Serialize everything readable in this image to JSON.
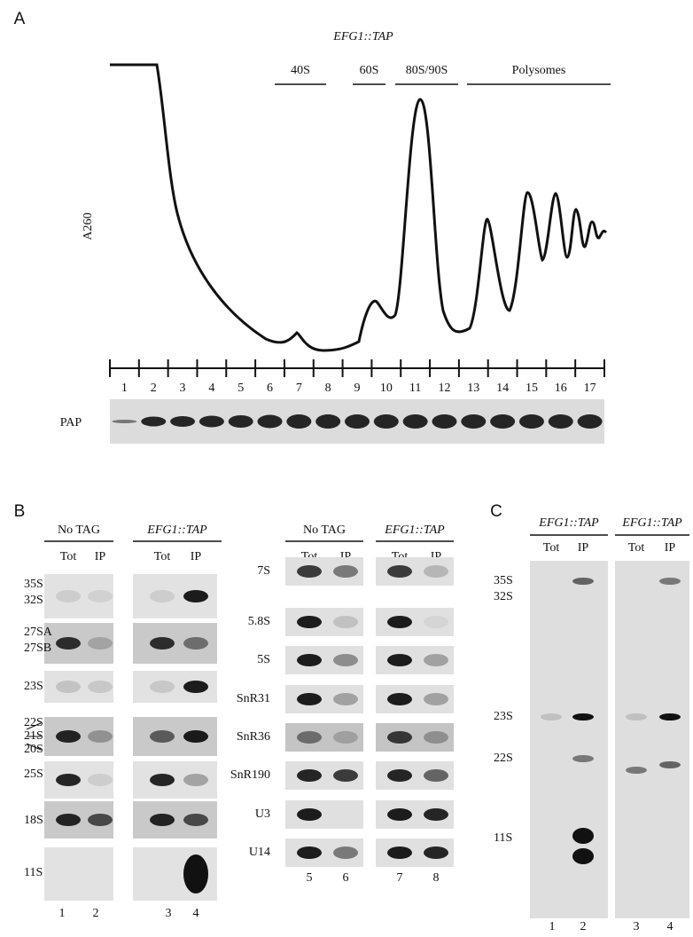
{
  "panel_a": {
    "label": "A",
    "title": "EFG1::TAP",
    "y_axis_label": "A260",
    "fraction_labels": [
      "40S",
      "60S",
      "80S/90S",
      "Polysomes"
    ],
    "lanes": [
      "1",
      "2",
      "3",
      "4",
      "5",
      "6",
      "7",
      "8",
      "9",
      "10",
      "11",
      "12",
      "13",
      "14",
      "15",
      "16",
      "17"
    ],
    "blot_label": "PAP"
  },
  "panel_b": {
    "label": "B",
    "left": {
      "groups": [
        "No TAG",
        "EFG1::TAP"
      ],
      "columns": [
        "Tot",
        "IP",
        "Tot",
        "IP"
      ],
      "rows": [
        [
          "35S",
          "32S"
        ],
        [
          "27SA",
          "27SB"
        ],
        [
          "23S"
        ],
        [
          "22S",
          "21S",
          "20S"
        ],
        [
          "25S"
        ],
        [
          "18S"
        ],
        [
          "11S"
        ]
      ],
      "lanes": [
        "1",
        "2",
        "3",
        "4"
      ]
    },
    "right": {
      "groups": [
        "No TAG",
        "EFG1::TAP"
      ],
      "columns": [
        "Tot",
        "IP",
        "Tot",
        "IP"
      ],
      "rows": [
        "7S",
        "5.8S",
        "5S",
        "SnR31",
        "SnR36",
        "SnR190",
        "U3",
        "U14"
      ],
      "lanes": [
        "5",
        "6",
        "7",
        "8"
      ]
    }
  },
  "panel_c": {
    "label": "C",
    "groups": [
      "EFG1::TAP",
      "EFG1::TAP"
    ],
    "columns": [
      "Tot",
      "IP",
      "Tot",
      "IP"
    ],
    "markers": [
      "35S",
      "32S",
      "23S",
      "22S",
      "11S"
    ],
    "lanes": [
      "1",
      "2",
      "3",
      "4"
    ]
  }
}
